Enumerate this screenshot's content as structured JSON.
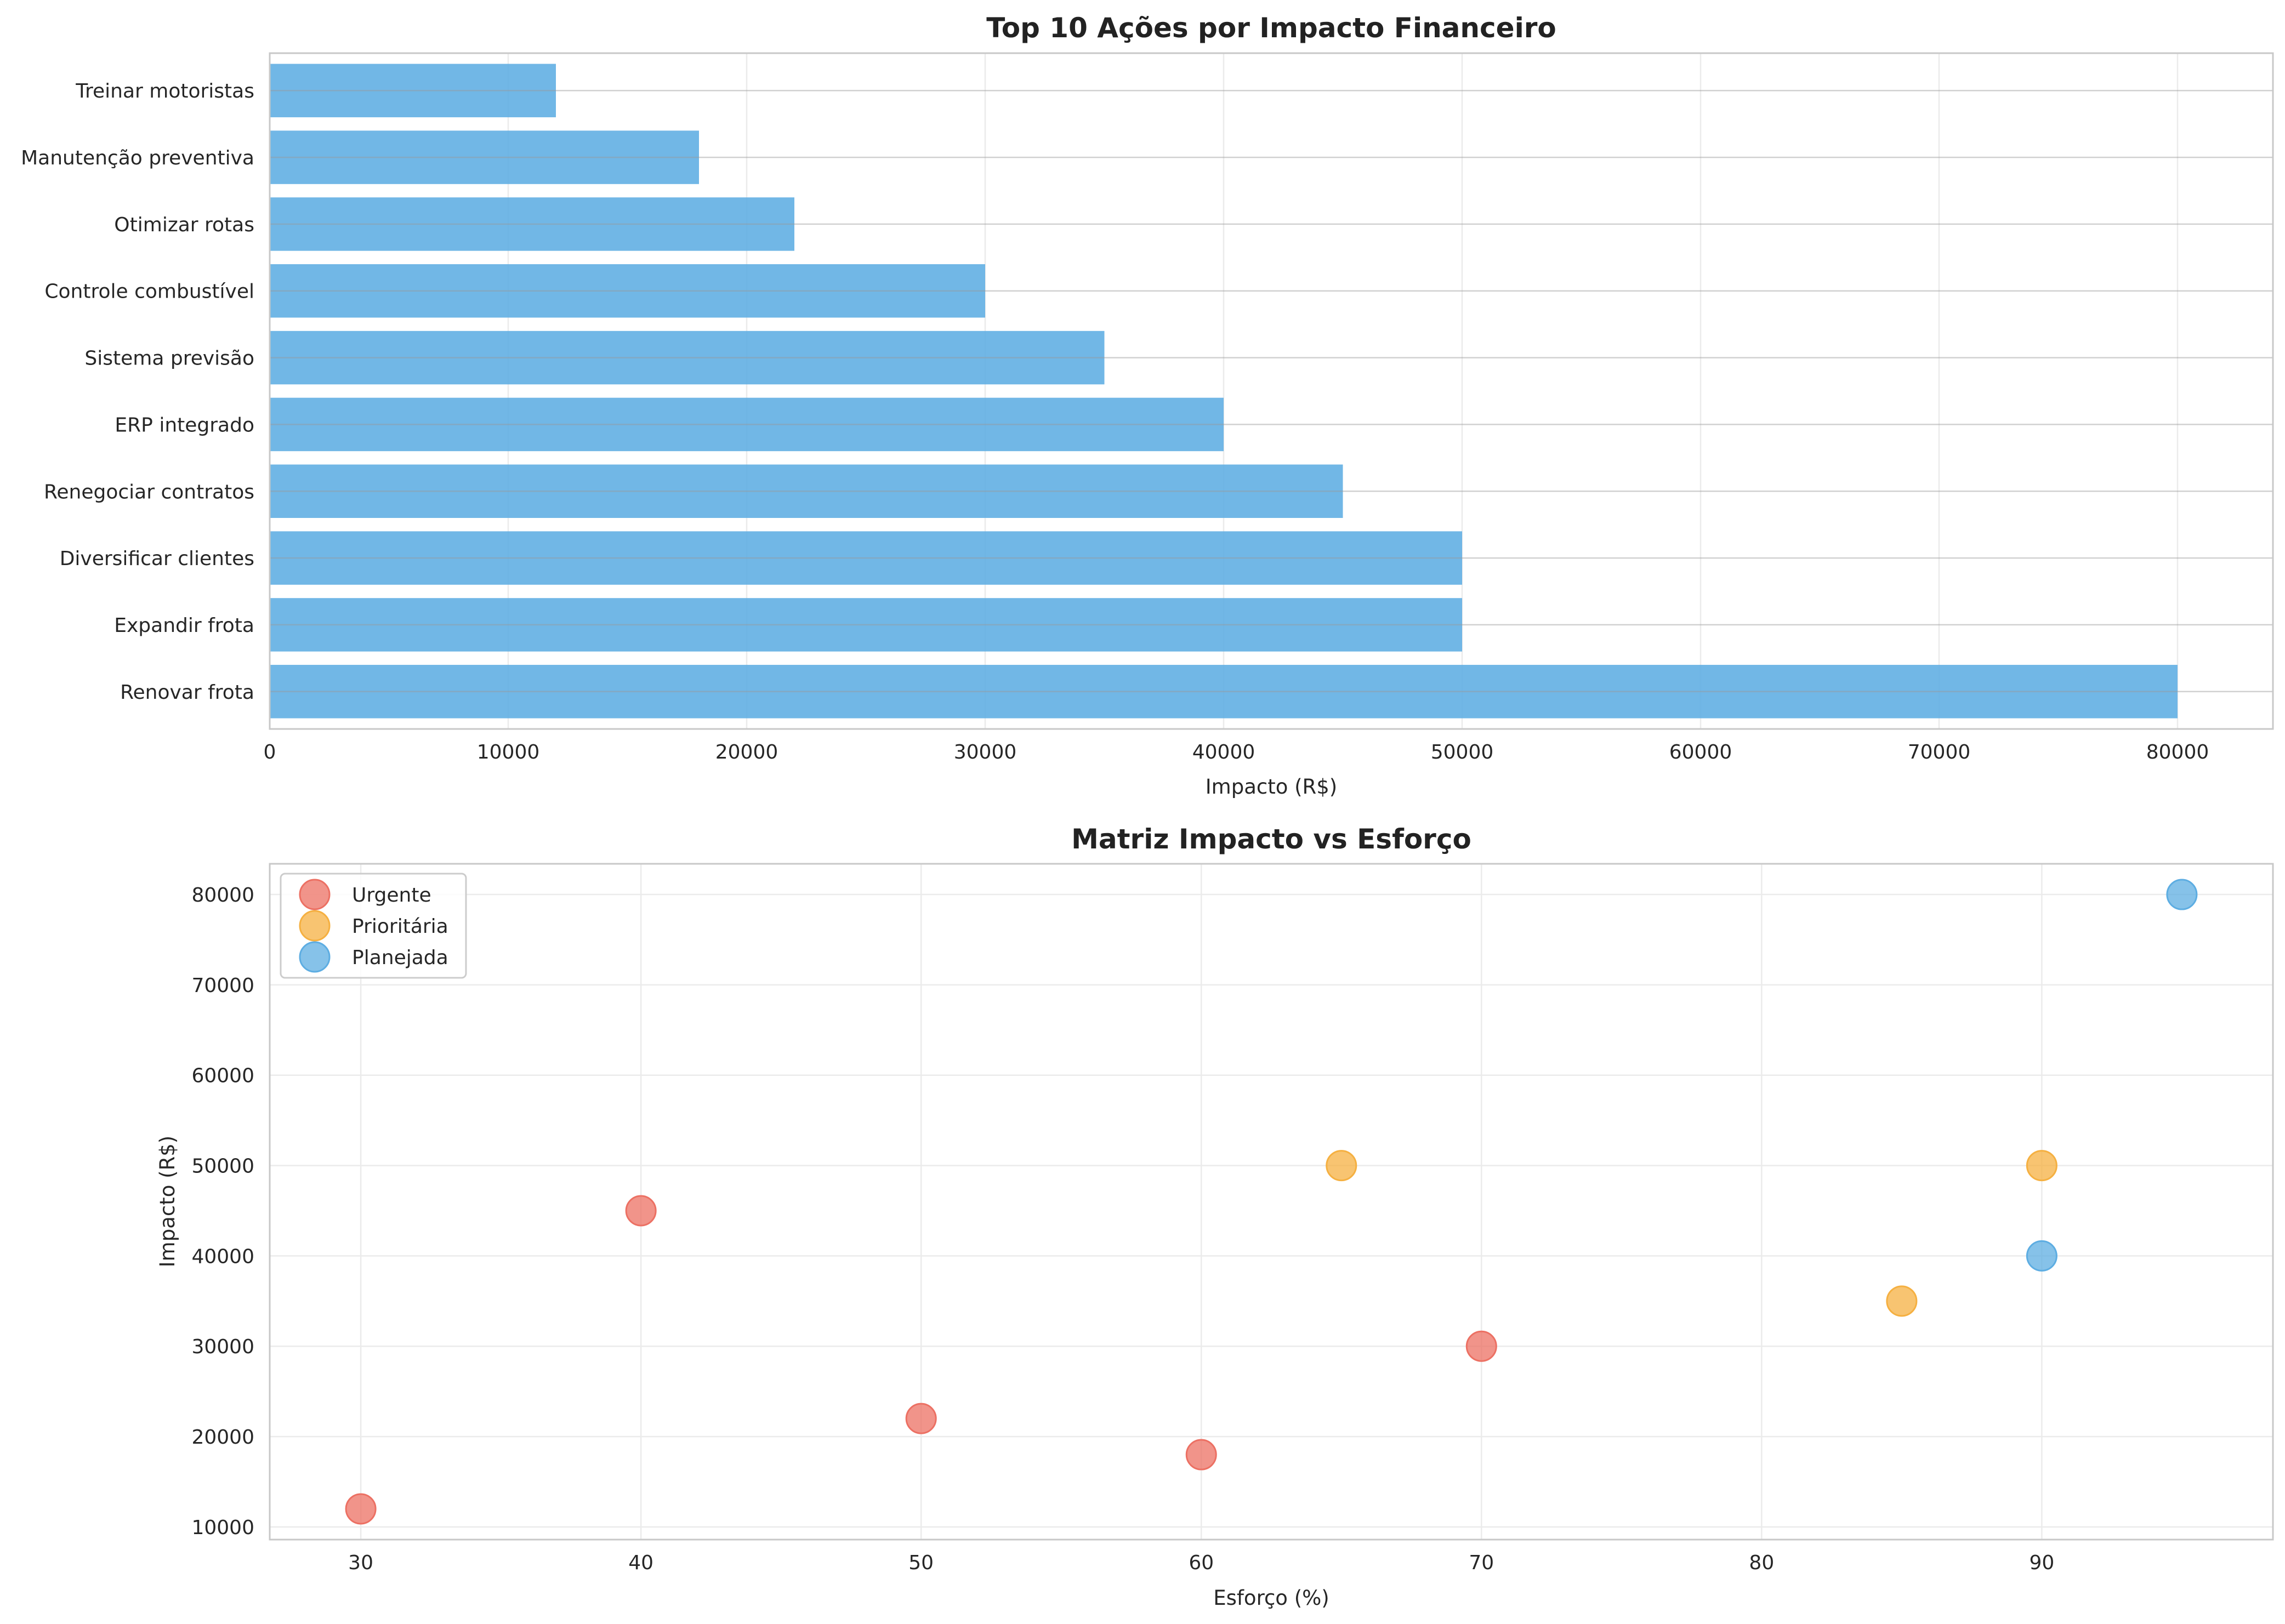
{
  "chart_data": [
    {
      "type": "bar",
      "orientation": "horizontal",
      "title": "Top 10 Ações por Impacto Financeiro",
      "xlabel": "Impacto (R$)",
      "ylabel": "",
      "xlim": [
        0,
        84000
      ],
      "xticks": [
        0,
        10000,
        20000,
        30000,
        40000,
        50000,
        60000,
        70000,
        80000
      ],
      "grid": true,
      "color": "#5dade2",
      "categories": [
        "Renovar frota",
        "Expandir frota",
        "Diversificar clientes",
        "Renegociar contratos",
        "ERP integrado",
        "Sistema previsão",
        "Controle combustível",
        "Otimizar rotas",
        "Manutenção preventiva",
        "Treinar motoristas"
      ],
      "values": [
        80000,
        50000,
        50000,
        45000,
        40000,
        35000,
        30000,
        22000,
        18000,
        12000
      ]
    },
    {
      "type": "scatter",
      "title": "Matriz Impacto vs Esforço",
      "xlabel": "Esforço (%)",
      "ylabel": "Impacto (R$)",
      "xlim": [
        26.75,
        98.25
      ],
      "ylim": [
        8600,
        83400
      ],
      "xticks": [
        30,
        40,
        50,
        60,
        70,
        80,
        90
      ],
      "yticks": [
        10000,
        20000,
        30000,
        40000,
        50000,
        60000,
        70000,
        80000
      ],
      "grid": true,
      "legend_position": "top-left",
      "series": [
        {
          "name": "Urgente",
          "color": "#ec7063",
          "points": [
            [
              30,
              12000
            ],
            [
              40,
              45000
            ],
            [
              50,
              22000
            ],
            [
              60,
              18000
            ],
            [
              70,
              30000
            ]
          ]
        },
        {
          "name": "Prioritária",
          "color": "#f5b041",
          "points": [
            [
              65,
              50000
            ],
            [
              85,
              35000
            ],
            [
              90,
              50000
            ]
          ]
        },
        {
          "name": "Planejada",
          "color": "#5dade2",
          "points": [
            [
              90,
              40000
            ],
            [
              95,
              80000
            ]
          ]
        }
      ]
    }
  ]
}
